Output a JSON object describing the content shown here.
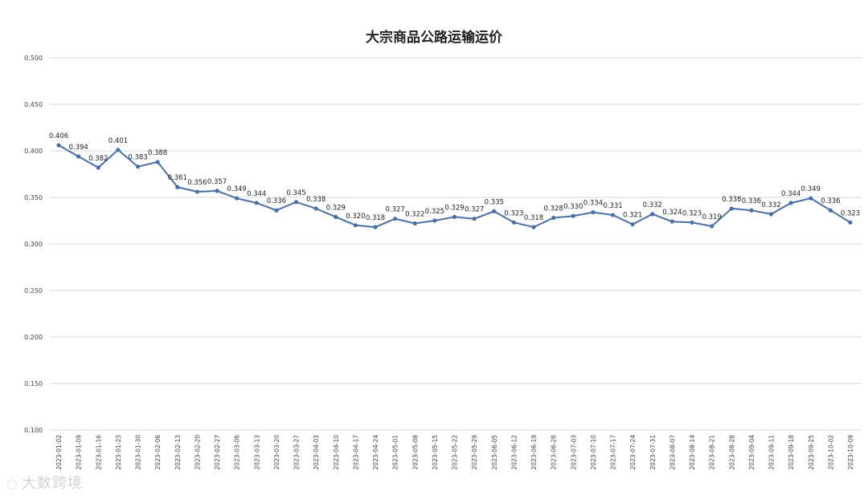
{
  "chart_data": {
    "type": "line",
    "title": "大宗商品公路运输运价",
    "xlabel": "",
    "ylabel": "",
    "ylim": [
      0.1,
      0.5
    ],
    "yticks": [
      "0.100",
      "0.150",
      "0.200",
      "0.250",
      "0.300",
      "0.350",
      "0.400",
      "0.450",
      "0.500"
    ],
    "grid": true,
    "legend": "none",
    "x": [
      "2023-01-02",
      "2023-01-09",
      "2023-01-16",
      "2023-01-23",
      "2023-01-30",
      "2023-02-06",
      "2023-02-13",
      "2023-02-20",
      "2023-02-27",
      "2023-03-06",
      "2023-03-13",
      "2023-03-20",
      "2023-03-27",
      "2023-04-03",
      "2023-04-10",
      "2023-04-17",
      "2023-04-24",
      "2023-05-01",
      "2023-05-08",
      "2023-05-15",
      "2023-05-22",
      "2023-05-29",
      "2023-06-05",
      "2023-06-12",
      "2023-06-19",
      "2023-06-26",
      "2023-07-03",
      "2023-07-10",
      "2023-07-17",
      "2023-07-24",
      "2023-07-31",
      "2023-08-07",
      "2023-08-14",
      "2023-08-21",
      "2023-08-28",
      "2023-09-04",
      "2023-09-11",
      "2023-09-18",
      "2023-09-25",
      "2023-10-02",
      "2023-10-09"
    ],
    "values": [
      0.406,
      0.394,
      0.382,
      0.401,
      0.383,
      0.388,
      0.361,
      0.356,
      0.357,
      0.349,
      0.344,
      0.336,
      0.345,
      0.338,
      0.329,
      0.32,
      0.318,
      0.327,
      0.322,
      0.325,
      0.329,
      0.327,
      0.335,
      0.323,
      0.318,
      0.328,
      0.33,
      0.334,
      0.331,
      0.321,
      0.332,
      0.324,
      0.323,
      0.319,
      0.338,
      0.336,
      0.332,
      0.344,
      0.349,
      0.336,
      0.323
    ],
    "labels": [
      "0.406",
      "0.394",
      "0.382",
      "0.401",
      "0.383",
      "0.388",
      "0.361",
      "0.356",
      "0.357",
      "0.349",
      "0.344",
      "0.336",
      "0.345",
      "0.338",
      "0.329",
      "0.320",
      "0.318",
      "0.327",
      "0.322",
      "0.325",
      "0.329",
      "0.327",
      "0.335",
      "0.323",
      "0.318",
      "0.328",
      "0.330",
      "0.334",
      "0.331",
      "0.321",
      "0.332",
      "0.324",
      "0.323",
      "0.319",
      "0.338",
      "0.336",
      "0.332",
      "0.344",
      "0.349",
      "0.336",
      "0.323"
    ],
    "line_color": "#4a6fa5"
  },
  "watermark": {
    "text": "大数跨境"
  }
}
